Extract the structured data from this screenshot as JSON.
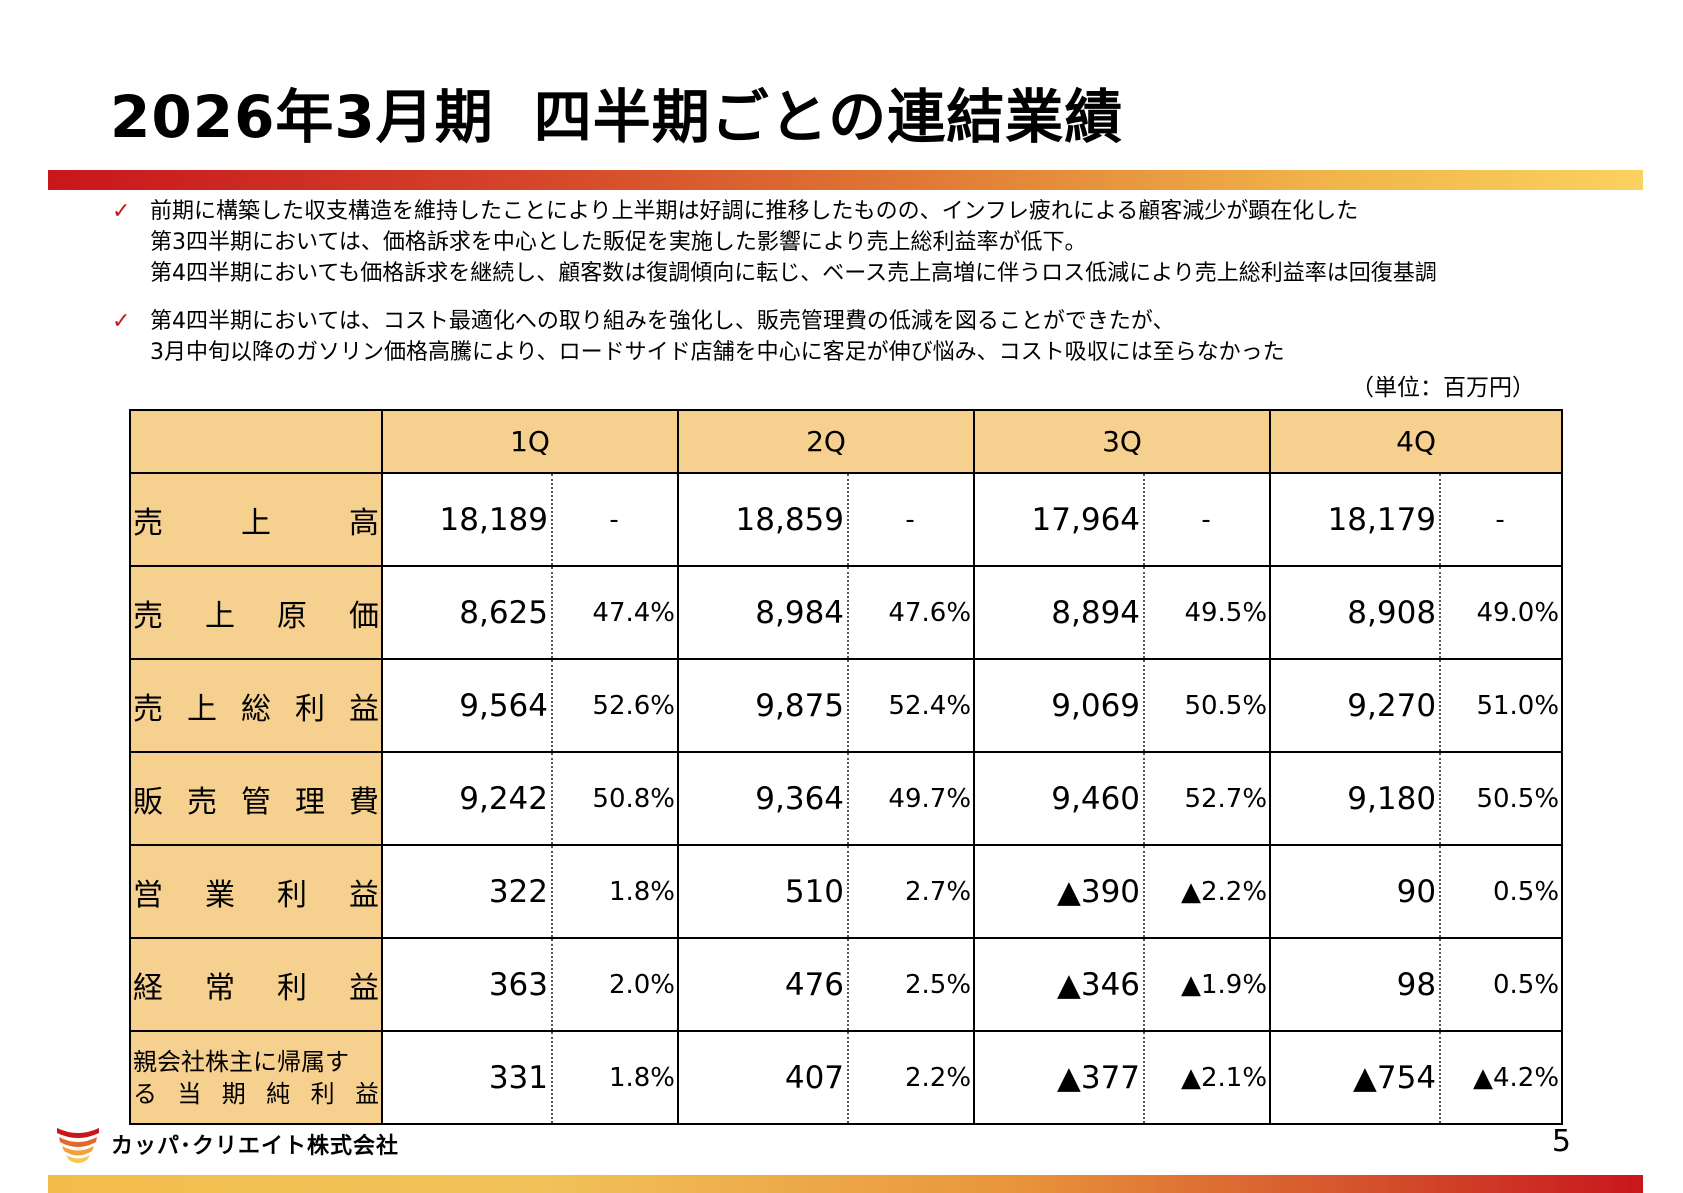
{
  "title_part1": "2026年3月期",
  "title_part2": "四半期ごとの連結業績",
  "bullets": [
    {
      "lines": [
        "前期に構築した収支構造を維持したことにより上半期は好調に推移したものの、インフレ疲れによる顧客減少が顕在化した",
        "第3四半期においては、価格訴求を中心とした販促を実施した影響により売上総利益率が低下。",
        "第4四半期においても価格訴求を継続し、顧客数は復調傾向に転じ、ベース売上高増に伴うロス低減により売上総利益率は回復基調"
      ]
    },
    {
      "lines": [
        "第4四半期においては、コスト最適化への取り組みを強化し、販売管理費の低減を図ることができたが、",
        "3月中旬以降のガソリン価格高騰により、ロードサイド店舗を中心に客足が伸び悩み、コスト吸収には至らなかった"
      ]
    }
  ],
  "unit_label": "（単位：百万円）",
  "table": {
    "columns": [
      "1Q",
      "2Q",
      "3Q",
      "4Q"
    ],
    "rows": [
      {
        "label": "売上高",
        "cells": [
          [
            "18,189",
            "-"
          ],
          [
            "18,859",
            "-"
          ],
          [
            "17,964",
            "-"
          ],
          [
            "18,179",
            "-"
          ]
        ]
      },
      {
        "label": "売上原価",
        "cells": [
          [
            "8,625",
            "47.4%"
          ],
          [
            "8,984",
            "47.6%"
          ],
          [
            "8,894",
            "49.5%"
          ],
          [
            "8,908",
            "49.0%"
          ]
        ]
      },
      {
        "label": "売上総利益",
        "cells": [
          [
            "9,564",
            "52.6%"
          ],
          [
            "9,875",
            "52.4%"
          ],
          [
            "9,069",
            "50.5%"
          ],
          [
            "9,270",
            "51.0%"
          ]
        ]
      },
      {
        "label": "販売管理費",
        "cells": [
          [
            "9,242",
            "50.8%"
          ],
          [
            "9,364",
            "49.7%"
          ],
          [
            "9,460",
            "52.7%"
          ],
          [
            "9,180",
            "50.5%"
          ]
        ]
      },
      {
        "label": "営業利益",
        "cells": [
          [
            "322",
            "1.8%"
          ],
          [
            "510",
            "2.7%"
          ],
          [
            "▲390",
            "▲2.2%"
          ],
          [
            "90",
            "0.5%"
          ]
        ]
      },
      {
        "label": "経常利益",
        "cells": [
          [
            "363",
            "2.0%"
          ],
          [
            "476",
            "2.5%"
          ],
          [
            "▲346",
            "▲1.9%"
          ],
          [
            "98",
            "0.5%"
          ]
        ]
      },
      {
        "label_lines": [
          "親会社株主に帰属す",
          "る当期純利益"
        ],
        "cells": [
          [
            "331",
            "1.8%"
          ],
          [
            "407",
            "2.2%"
          ],
          [
            "▲377",
            "▲2.1%"
          ],
          [
            "▲754",
            "▲4.2%"
          ]
        ]
      }
    ]
  },
  "footer": {
    "company_name": "カッパ･クリエイト株式会社",
    "page_number": "5"
  },
  "colors": {
    "header_fill": "#f6d08f",
    "accent_red": "#c8161d",
    "accent_gold": "#fbd160"
  }
}
